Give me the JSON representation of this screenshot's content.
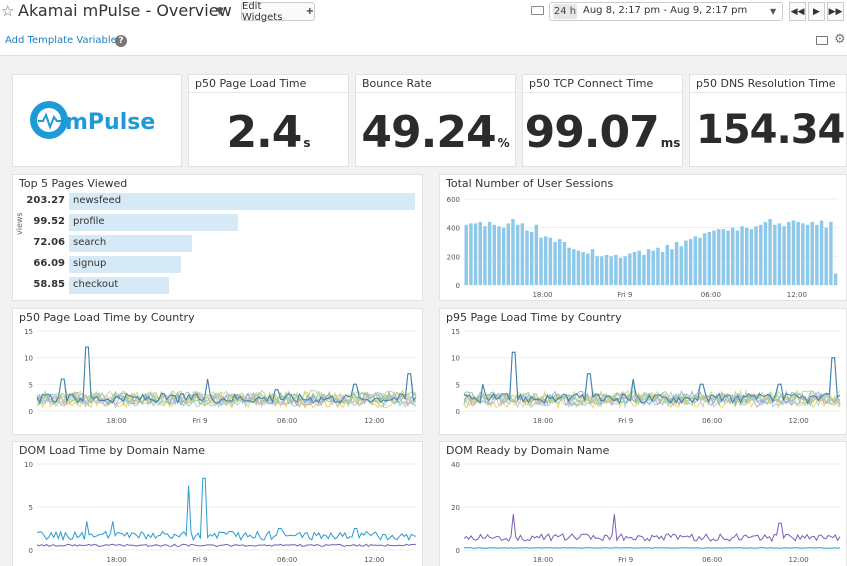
{
  "header": {
    "title": "Akamai mPulse - Overview",
    "edit_widgets_label": "Edit Widgets",
    "time_range_badge": "24 h",
    "time_range_text": "Aug 8, 2:17 pm - Aug 9, 2:17 pm",
    "add_template_variables": "Add Template Variables",
    "controls": {
      "back_icon": "rewind-icon",
      "play_icon": "play-icon",
      "forward_icon": "fast-forward-icon"
    }
  },
  "logo": {
    "text": "mPulse"
  },
  "query_values": [
    {
      "title": "p50 Page Load Time",
      "value": "2.4",
      "unit": "s"
    },
    {
      "title": "Bounce Rate",
      "value": "49.24",
      "unit": "%"
    },
    {
      "title": "p50 TCP Connect Time",
      "value": "99.07",
      "unit": "ms"
    },
    {
      "title": "p50 DNS Resolution Time",
      "value": "154.34",
      "unit": "ms"
    }
  ],
  "toplist": {
    "title": "Top 5 Pages Viewed",
    "axis_label": "views",
    "rows": [
      {
        "value": "203.27",
        "label": "newsfeed",
        "num": 203.27
      },
      {
        "value": "99.52",
        "label": "profile",
        "num": 99.52
      },
      {
        "value": "72.06",
        "label": "search",
        "num": 72.06
      },
      {
        "value": "66.09",
        "label": "signup",
        "num": 66.09
      },
      {
        "value": "58.85",
        "label": "checkout",
        "num": 58.85
      }
    ]
  },
  "x_ticks": [
    "18:00",
    "Fri 9",
    "06:00",
    "12:00"
  ],
  "charts": [
    {
      "title": "Total Number of User Sessions",
      "chart_data": {
        "type": "bar",
        "yticks": [
          "600",
          "400",
          "200",
          "0"
        ],
        "ylim": [
          0,
          600
        ],
        "color": "#8fc9ea",
        "values": [
          420,
          430,
          430,
          440,
          410,
          440,
          420,
          410,
          400,
          430,
          460,
          420,
          430,
          380,
          370,
          420,
          330,
          340,
          330,
          300,
          320,
          300,
          260,
          250,
          240,
          230,
          220,
          250,
          200,
          200,
          210,
          200,
          210,
          190,
          200,
          220,
          230,
          240,
          210,
          250,
          240,
          260,
          230,
          280,
          250,
          300,
          270,
          310,
          320,
          340,
          330,
          360,
          370,
          380,
          390,
          390,
          380,
          400,
          380,
          410,
          400,
          390,
          410,
          420,
          440,
          460,
          420,
          430,
          410,
          440,
          450,
          440,
          430,
          420,
          440,
          420,
          450,
          400,
          440,
          80
        ]
      }
    },
    {
      "title": "p50 Page Load Time by Country",
      "chart_data": {
        "type": "area",
        "yticks": [
          "15",
          "10",
          "5",
          "0"
        ],
        "ylim": [
          0,
          15
        ],
        "spikes": [
          [
            0.07,
            6
          ],
          [
            0.13,
            12
          ],
          [
            0.45,
            6
          ],
          [
            0.63,
            4
          ],
          [
            0.84,
            5
          ],
          [
            0.98,
            7
          ]
        ]
      }
    },
    {
      "title": "p95 Page Load Time by Country",
      "chart_data": {
        "type": "area",
        "yticks": [
          "15",
          "10",
          "5",
          "0"
        ],
        "ylim": [
          0,
          15
        ],
        "spikes": [
          [
            0.05,
            5
          ],
          [
            0.13,
            11
          ],
          [
            0.33,
            7
          ],
          [
            0.45,
            6
          ],
          [
            0.63,
            5
          ],
          [
            0.84,
            5
          ],
          [
            0.98,
            10
          ]
        ]
      }
    },
    {
      "title": "DOM Load Time by Domain Name",
      "chart_data": {
        "type": "line",
        "yticks": [
          "10",
          "5",
          "0"
        ],
        "ylim": [
          0,
          12
        ],
        "spikes": [
          [
            0.13,
            4
          ],
          [
            0.2,
            4
          ],
          [
            0.4,
            9
          ],
          [
            0.44,
            10
          ],
          [
            0.64,
            3
          ],
          [
            0.84,
            3
          ]
        ],
        "colors": [
          "#2a9ccf",
          "#7c5db7"
        ]
      }
    },
    {
      "title": "DOM Ready by Domain Name",
      "chart_data": {
        "type": "line",
        "yticks": [
          "40",
          "20",
          "0"
        ],
        "ylim": [
          0,
          48
        ],
        "spikes": [
          [
            0.13,
            40
          ],
          [
            0.13,
            20
          ],
          [
            0.4,
            20
          ],
          [
            0.84,
            15
          ]
        ],
        "colors": [
          "#7c5db7",
          "#2a9ccf"
        ]
      }
    }
  ]
}
